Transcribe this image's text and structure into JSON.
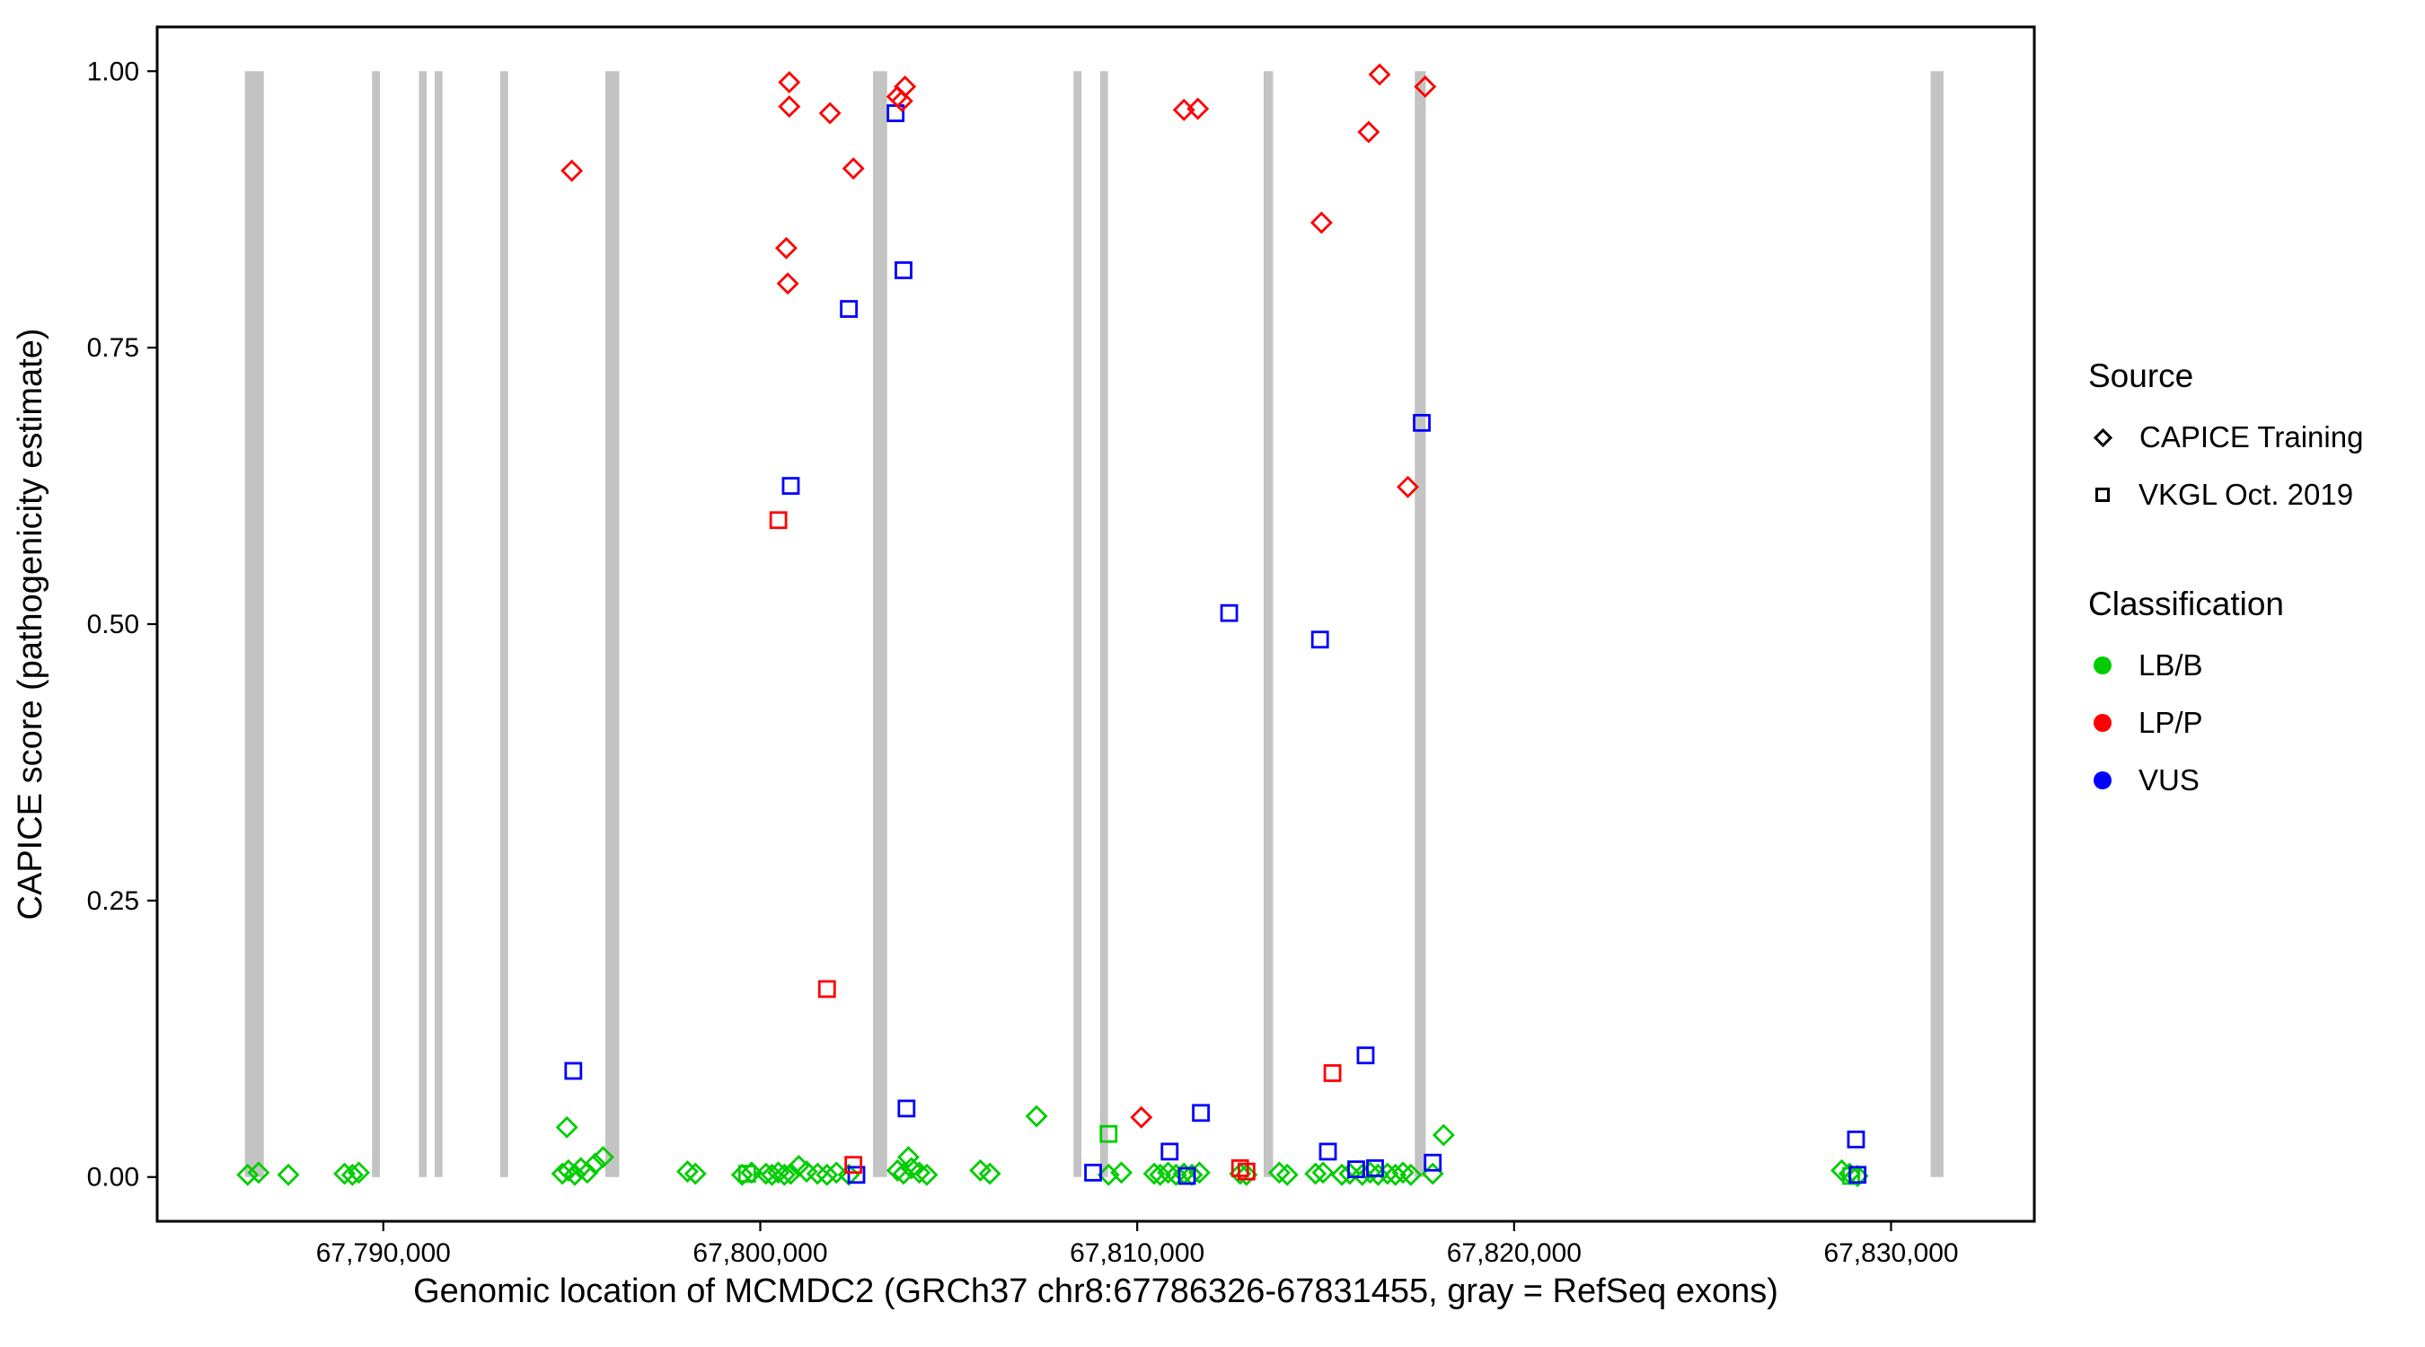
{
  "chart_data": {
    "type": "scatter",
    "title": "",
    "xlabel": "Genomic location of MCMDC2 (GRCh37 chr8:67786326-67831455, gray = RefSeq exons)",
    "ylabel": "CAPICE score (pathogenicity estimate)",
    "xlim": [
      67784000,
      67833800
    ],
    "ylim": [
      -0.04,
      1.04
    ],
    "grid": false,
    "panel_background": "#FFFFFF",
    "panel_border_color": "#000000",
    "xticks": [
      {
        "value": 67790000,
        "label": "67,790,000"
      },
      {
        "value": 67800000,
        "label": "67,800,000"
      },
      {
        "value": 67810000,
        "label": "67,810,000"
      },
      {
        "value": 67820000,
        "label": "67,820,000"
      },
      {
        "value": 67830000,
        "label": "67,830,000"
      }
    ],
    "yticks": [
      {
        "value": 0.0,
        "label": "0.00"
      },
      {
        "value": 0.25,
        "label": "0.25"
      },
      {
        "value": 0.5,
        "label": "0.50"
      },
      {
        "value": 0.75,
        "label": "0.75"
      },
      {
        "value": 1.0,
        "label": "1.00"
      }
    ],
    "exon_track": {
      "color": "#C3C3C3",
      "ymin": 0,
      "ymax": 1,
      "exons": [
        {
          "start": 67786326,
          "end": 67786830
        },
        {
          "start": 67789700,
          "end": 67789910
        },
        {
          "start": 67790945,
          "end": 67791150
        },
        {
          "start": 67791360,
          "end": 67791570
        },
        {
          "start": 67793100,
          "end": 67793310
        },
        {
          "start": 67795890,
          "end": 67796260
        },
        {
          "start": 67802990,
          "end": 67803365
        },
        {
          "start": 67808310,
          "end": 67808520
        },
        {
          "start": 67809015,
          "end": 67809225
        },
        {
          "start": 67813355,
          "end": 67813605
        },
        {
          "start": 67817365,
          "end": 67817655
        },
        {
          "start": 67831050,
          "end": 67831390
        }
      ]
    },
    "source_codes": {
      "T": "CAPICE Training",
      "V": "VKGL Oct. 2019"
    },
    "class_codes": {
      "B": "LB/B",
      "P": "LP/P",
      "U": "VUS"
    },
    "source_shapes": {
      "CAPICE Training": "diamond",
      "VKGL Oct. 2019": "square"
    },
    "classification_colors": {
      "LB/B": "#00CD00",
      "LP/P": "#FF0000",
      "VUS": "#0000FF"
    },
    "points_schema": [
      "genomic_position",
      "capice_score",
      "source",
      "classification"
    ],
    "points": [
      [
        67786400,
        0.002,
        "T",
        "B"
      ],
      [
        67786690,
        0.004,
        "T",
        "B"
      ],
      [
        67787480,
        0.002,
        "T",
        "B"
      ],
      [
        67788970,
        0.003,
        "T",
        "B"
      ],
      [
        67789180,
        0.002,
        "T",
        "B"
      ],
      [
        67789350,
        0.004,
        "T",
        "B"
      ],
      [
        67794750,
        0.003,
        "T",
        "B"
      ],
      [
        67794870,
        0.045,
        "T",
        "B"
      ],
      [
        67794910,
        0.006,
        "T",
        "B"
      ],
      [
        67795080,
        0.002,
        "T",
        "B"
      ],
      [
        67795240,
        0.008,
        "T",
        "B"
      ],
      [
        67795410,
        0.004,
        "T",
        "B"
      ],
      [
        67795620,
        0.012,
        "T",
        "B"
      ],
      [
        67795830,
        0.018,
        "T",
        "B"
      ],
      [
        67798070,
        0.005,
        "T",
        "B"
      ],
      [
        67798280,
        0.003,
        "T",
        "B"
      ],
      [
        67799520,
        0.002,
        "T",
        "B"
      ],
      [
        67799770,
        0.004,
        "T",
        "B"
      ],
      [
        67800150,
        0.003,
        "T",
        "B"
      ],
      [
        67800310,
        0.002,
        "T",
        "B"
      ],
      [
        67800480,
        0.004,
        "T",
        "B"
      ],
      [
        67800640,
        0.002,
        "T",
        "B"
      ],
      [
        67800810,
        0.003,
        "T",
        "B"
      ],
      [
        67801020,
        0.01,
        "T",
        "B"
      ],
      [
        67801230,
        0.005,
        "T",
        "B"
      ],
      [
        67801520,
        0.003,
        "T",
        "B"
      ],
      [
        67801770,
        0.002,
        "T",
        "B"
      ],
      [
        67802020,
        0.004,
        "T",
        "B"
      ],
      [
        67802350,
        0.002,
        "T",
        "B"
      ],
      [
        67803640,
        0.006,
        "T",
        "B"
      ],
      [
        67803800,
        0.003,
        "T",
        "B"
      ],
      [
        67803930,
        0.018,
        "T",
        "B"
      ],
      [
        67804010,
        0.008,
        "T",
        "B"
      ],
      [
        67804220,
        0.004,
        "T",
        "B"
      ],
      [
        67804420,
        0.002,
        "T",
        "B"
      ],
      [
        67805840,
        0.006,
        "T",
        "B"
      ],
      [
        67806090,
        0.003,
        "T",
        "B"
      ],
      [
        67807330,
        0.055,
        "T",
        "B"
      ],
      [
        67809240,
        0.002,
        "T",
        "B"
      ],
      [
        67809580,
        0.004,
        "T",
        "B"
      ],
      [
        67810450,
        0.003,
        "T",
        "B"
      ],
      [
        67810610,
        0.002,
        "T",
        "B"
      ],
      [
        67810820,
        0.004,
        "T",
        "B"
      ],
      [
        67811030,
        0.002,
        "T",
        "B"
      ],
      [
        67811240,
        0.003,
        "T",
        "B"
      ],
      [
        67811450,
        0.002,
        "T",
        "B"
      ],
      [
        67811650,
        0.004,
        "T",
        "B"
      ],
      [
        67812730,
        0.003,
        "T",
        "B"
      ],
      [
        67812900,
        0.002,
        "T",
        "B"
      ],
      [
        67813770,
        0.004,
        "T",
        "B"
      ],
      [
        67813980,
        0.002,
        "T",
        "B"
      ],
      [
        67814730,
        0.003,
        "T",
        "B"
      ],
      [
        67814930,
        0.004,
        "T",
        "B"
      ],
      [
        67815430,
        0.002,
        "T",
        "B"
      ],
      [
        67815640,
        0.003,
        "T",
        "B"
      ],
      [
        67815970,
        0.002,
        "T",
        "B"
      ],
      [
        67816180,
        0.004,
        "T",
        "B"
      ],
      [
        67816390,
        0.002,
        "T",
        "B"
      ],
      [
        67816640,
        0.003,
        "T",
        "B"
      ],
      [
        67816850,
        0.002,
        "T",
        "B"
      ],
      [
        67817050,
        0.004,
        "T",
        "B"
      ],
      [
        67817260,
        0.002,
        "T",
        "B"
      ],
      [
        67817840,
        0.003,
        "T",
        "B"
      ],
      [
        67818130,
        0.038,
        "T",
        "B"
      ],
      [
        67828690,
        0.006,
        "T",
        "B"
      ],
      [
        67828900,
        0.003,
        "T",
        "B"
      ],
      [
        67829110,
        0.001,
        "T",
        "B"
      ],
      [
        67799650,
        0.003,
        "V",
        "B"
      ],
      [
        67809240,
        0.039,
        "V",
        "B"
      ],
      [
        67828940,
        0.001,
        "V",
        "B"
      ],
      [
        67795040,
        0.096,
        "V",
        "U"
      ],
      [
        67800810,
        0.625,
        "V",
        "U"
      ],
      [
        67802350,
        0.785,
        "V",
        "U"
      ],
      [
        67802550,
        0.002,
        "V",
        "U"
      ],
      [
        67803590,
        0.962,
        "V",
        "U"
      ],
      [
        67803800,
        0.82,
        "V",
        "U"
      ],
      [
        67803880,
        0.062,
        "V",
        "U"
      ],
      [
        67808830,
        0.004,
        "V",
        "U"
      ],
      [
        67810860,
        0.023,
        "V",
        "U"
      ],
      [
        67811320,
        0.001,
        "V",
        "U"
      ],
      [
        67811690,
        0.058,
        "V",
        "U"
      ],
      [
        67812440,
        0.51,
        "V",
        "U"
      ],
      [
        67814850,
        0.486,
        "V",
        "U"
      ],
      [
        67815060,
        0.023,
        "V",
        "U"
      ],
      [
        67815810,
        0.007,
        "V",
        "U"
      ],
      [
        67816060,
        0.11,
        "V",
        "U"
      ],
      [
        67816310,
        0.008,
        "V",
        "U"
      ],
      [
        67817550,
        0.682,
        "V",
        "U"
      ],
      [
        67817840,
        0.013,
        "V",
        "U"
      ],
      [
        67829070,
        0.034,
        "V",
        "U"
      ],
      [
        67829110,
        0.002,
        "V",
        "U"
      ],
      [
        67800480,
        0.594,
        "V",
        "P"
      ],
      [
        67801770,
        0.17,
        "V",
        "P"
      ],
      [
        67802470,
        0.011,
        "V",
        "P"
      ],
      [
        67812730,
        0.008,
        "V",
        "P"
      ],
      [
        67812900,
        0.005,
        "V",
        "P"
      ],
      [
        67815180,
        0.094,
        "V",
        "P"
      ],
      [
        67795000,
        0.91,
        "T",
        "P"
      ],
      [
        67800690,
        0.84,
        "T",
        "P"
      ],
      [
        67800730,
        0.808,
        "T",
        "P"
      ],
      [
        67800770,
        0.99,
        "T",
        "P"
      ],
      [
        67800770,
        0.968,
        "T",
        "P"
      ],
      [
        67801850,
        0.962,
        "T",
        "P"
      ],
      [
        67802470,
        0.912,
        "T",
        "P"
      ],
      [
        67803640,
        0.977,
        "T",
        "P"
      ],
      [
        67803760,
        0.973,
        "T",
        "P"
      ],
      [
        67803840,
        0.986,
        "T",
        "P"
      ],
      [
        67810110,
        0.054,
        "T",
        "P"
      ],
      [
        67811240,
        0.965,
        "T",
        "P"
      ],
      [
        67811610,
        0.966,
        "T",
        "P"
      ],
      [
        67814890,
        0.863,
        "T",
        "P"
      ],
      [
        67816140,
        0.945,
        "T",
        "P"
      ],
      [
        67816430,
        0.997,
        "T",
        "P"
      ],
      [
        67817180,
        0.624,
        "T",
        "P"
      ],
      [
        67817640,
        0.986,
        "T",
        "P"
      ]
    ]
  },
  "legend": {
    "source": {
      "title": "Source",
      "items": [
        {
          "label": "CAPICE Training",
          "shape": "diamond"
        },
        {
          "label": "VKGL Oct. 2019",
          "shape": "square"
        }
      ]
    },
    "classification": {
      "title": "Classification",
      "items": [
        {
          "label": "LB/B",
          "color": "#00CD00"
        },
        {
          "label": "LP/P",
          "color": "#FF0000"
        },
        {
          "label": "VUS",
          "color": "#0000FF"
        }
      ]
    }
  }
}
